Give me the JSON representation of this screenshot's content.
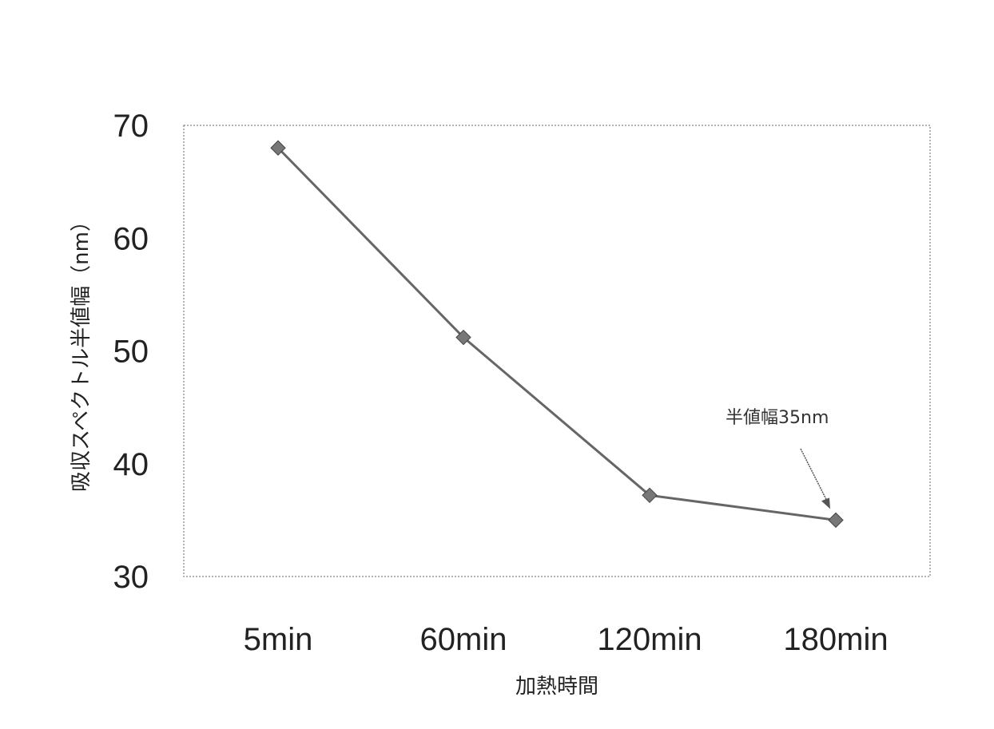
{
  "chart_data": {
    "type": "line",
    "categories": [
      "5min",
      "60min",
      "120min",
      "180min"
    ],
    "series": [
      {
        "values": [
          68,
          51.2,
          37.2,
          35
        ]
      }
    ],
    "xlabel": "加熱時間",
    "ylabel": "吸収スペクトル半値幅（nm）",
    "ylim": [
      30,
      70
    ],
    "yticks": [
      30,
      40,
      50,
      60,
      70
    ],
    "annotation": {
      "text": "半値幅35nm",
      "target_index": 3
    },
    "grid": false,
    "colors": {
      "line": "#666666",
      "marker": "#777777",
      "frame": "#999999"
    }
  }
}
